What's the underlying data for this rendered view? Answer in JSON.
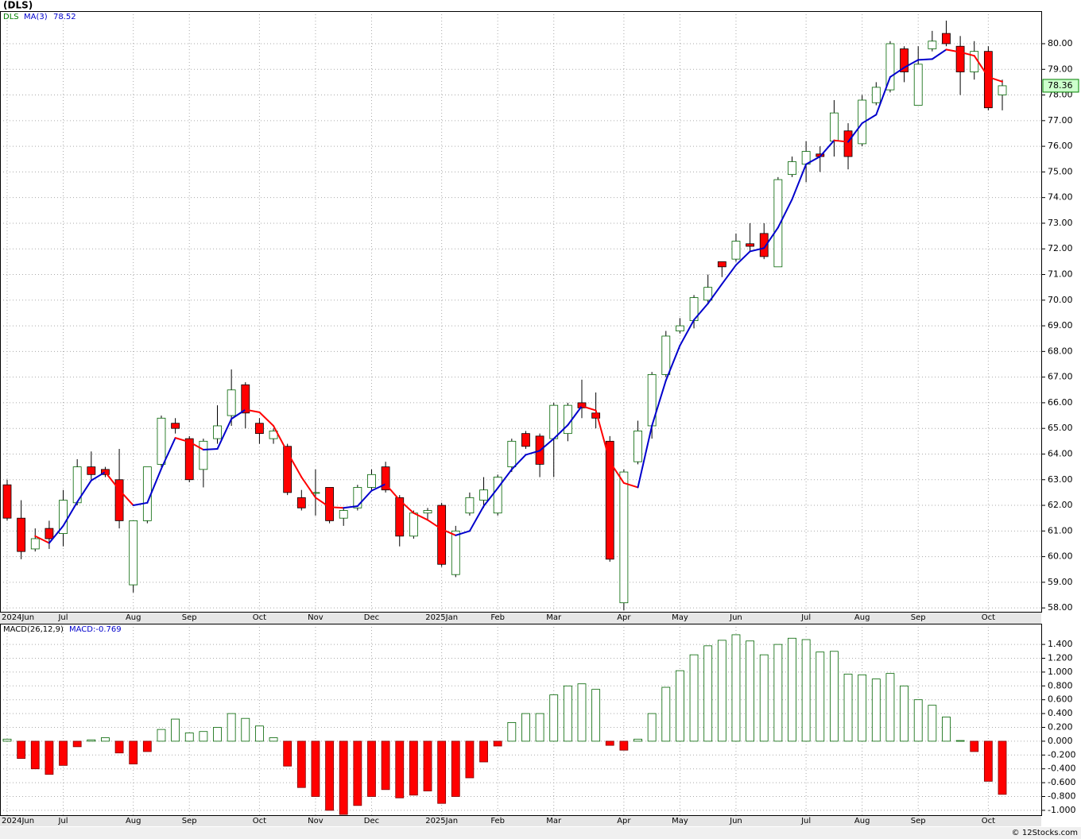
{
  "chart_data": [
    {
      "type": "candlestick",
      "title": "(DLS)",
      "categories": [
        "2024Jun",
        null,
        null,
        null,
        "Jul",
        null,
        null,
        null,
        null,
        "Aug",
        null,
        null,
        null,
        "Sep",
        null,
        null,
        null,
        null,
        "Oct",
        null,
        null,
        null,
        "Nov",
        null,
        null,
        null,
        "Dec",
        null,
        null,
        null,
        null,
        "2025Jan",
        null,
        null,
        null,
        "Feb",
        null,
        null,
        null,
        "Mar",
        null,
        null,
        null,
        null,
        "Apr",
        null,
        null,
        null,
        "May",
        null,
        null,
        null,
        "Jun",
        null,
        null,
        null,
        null,
        "Jul",
        null,
        null,
        null,
        "Aug",
        null,
        null,
        null,
        "Sep",
        null,
        null,
        null,
        null,
        "Oct",
        null
      ],
      "series": [
        {
          "name": "DLS",
          "color": "#008000",
          "up_color": "#ffffff",
          "down_color": "#ff0000",
          "open": [
            62.8,
            61.5,
            60.3,
            61.1,
            60.9,
            62.1,
            63.5,
            63.4,
            63.0,
            58.9,
            61.4,
            63.6,
            65.2,
            64.6,
            63.4,
            64.6,
            65.5,
            66.7,
            65.2,
            64.6,
            64.3,
            62.3,
            62.5,
            62.7,
            61.5,
            61.9,
            62.7,
            63.5,
            62.3,
            60.8,
            61.7,
            62.0,
            59.3,
            61.7,
            62.2,
            61.7,
            63.5,
            64.8,
            64.7,
            64.6,
            64.8,
            66.0,
            65.6,
            64.5,
            58.2,
            63.7,
            65.1,
            67.1,
            68.8,
            69.2,
            70.0,
            71.5,
            71.6,
            72.2,
            72.6,
            71.3,
            74.9,
            75.3,
            75.7,
            76.2,
            76.6,
            76.1,
            77.7,
            78.2,
            79.8,
            77.6,
            79.8,
            80.4,
            79.9,
            78.9,
            79.7,
            78.0
          ],
          "high": [
            63.0,
            62.2,
            61.1,
            61.4,
            62.6,
            63.8,
            64.1,
            63.5,
            64.2,
            61.4,
            63.5,
            65.5,
            65.4,
            64.7,
            64.6,
            65.9,
            67.3,
            66.8,
            65.4,
            65.0,
            64.4,
            62.6,
            63.4,
            62.7,
            61.9,
            62.8,
            63.4,
            63.7,
            62.4,
            61.8,
            61.9,
            62.1,
            61.2,
            62.5,
            63.1,
            63.2,
            64.6,
            64.9,
            64.8,
            66.0,
            66.0,
            66.9,
            66.4,
            64.7,
            63.4,
            65.3,
            67.2,
            68.8,
            69.3,
            70.2,
            71.0,
            71.5,
            72.6,
            73.0,
            73.0,
            74.8,
            75.6,
            76.2,
            76.0,
            77.8,
            76.9,
            78.0,
            78.5,
            80.1,
            79.9,
            79.9,
            80.5,
            80.9,
            80.3,
            80.1,
            79.9,
            78.6
          ],
          "low": [
            61.4,
            59.9,
            60.2,
            60.3,
            60.4,
            62.0,
            63.0,
            63.1,
            61.1,
            58.6,
            61.3,
            63.5,
            64.8,
            62.9,
            62.7,
            64.4,
            65.1,
            65.0,
            64.4,
            64.4,
            62.4,
            61.8,
            61.6,
            61.3,
            61.2,
            61.8,
            62.6,
            62.5,
            60.4,
            60.7,
            61.4,
            59.6,
            59.2,
            61.6,
            61.9,
            61.6,
            63.3,
            64.2,
            63.1,
            63.1,
            64.5,
            65.4,
            65.0,
            59.8,
            57.9,
            63.6,
            64.6,
            67.0,
            68.7,
            68.9,
            69.9,
            70.9,
            71.5,
            71.9,
            71.6,
            71.3,
            74.8,
            74.6,
            75.0,
            75.6,
            75.1,
            76.0,
            77.6,
            78.1,
            78.5,
            77.6,
            79.7,
            79.9,
            78.0,
            78.6,
            77.4,
            77.4
          ],
          "close": [
            61.5,
            60.2,
            60.7,
            60.7,
            62.2,
            63.5,
            63.2,
            63.2,
            61.4,
            61.4,
            63.5,
            65.4,
            65.0,
            63.0,
            64.5,
            65.1,
            66.5,
            65.6,
            64.8,
            64.9,
            62.5,
            61.9,
            62.5,
            61.4,
            61.8,
            62.7,
            63.2,
            62.6,
            60.8,
            61.7,
            61.8,
            59.7,
            61.0,
            62.3,
            62.6,
            63.1,
            64.5,
            64.3,
            63.6,
            65.9,
            65.9,
            65.8,
            65.4,
            59.9,
            63.3,
            64.9,
            67.1,
            68.6,
            69.0,
            70.1,
            70.5,
            71.3,
            72.3,
            72.1,
            71.7,
            74.7,
            75.4,
            75.8,
            75.6,
            77.3,
            75.6,
            77.8,
            78.3,
            80.0,
            78.9,
            79.2,
            80.1,
            80.0,
            78.9,
            79.7,
            77.5,
            78.36
          ]
        },
        {
          "name": "MA(3)",
          "type": "line",
          "color": "#0000cc",
          "down_color": "#ff0000",
          "values": [
            null,
            null,
            60.8,
            60.53,
            61.2,
            62.13,
            62.97,
            63.3,
            62.6,
            62.0,
            62.1,
            63.43,
            64.63,
            64.47,
            64.17,
            64.2,
            65.37,
            65.73,
            65.63,
            65.1,
            64.07,
            63.1,
            62.3,
            61.93,
            61.9,
            61.97,
            62.57,
            62.83,
            62.2,
            61.7,
            61.43,
            61.07,
            60.83,
            61.0,
            61.97,
            62.67,
            63.4,
            63.97,
            64.13,
            64.6,
            65.13,
            65.87,
            65.7,
            63.7,
            62.87,
            62.7,
            65.1,
            66.87,
            68.23,
            69.23,
            69.87,
            70.63,
            71.37,
            71.9,
            72.03,
            72.83,
            73.93,
            75.3,
            75.6,
            76.23,
            76.17,
            76.9,
            77.23,
            78.7,
            79.07,
            79.37,
            79.4,
            79.77,
            79.67,
            79.53,
            78.7,
            78.52
          ]
        }
      ],
      "ylim": [
        57.85,
        81.27
      ],
      "yticks": [
        {
          "value": 58,
          "label": "58.00"
        },
        {
          "value": 59,
          "label": "59.00"
        },
        {
          "value": 60,
          "label": "60.00"
        },
        {
          "value": 61,
          "label": "61.00"
        },
        {
          "value": 62,
          "label": "62.00"
        },
        {
          "value": 63,
          "label": "63.00"
        },
        {
          "value": 64,
          "label": "64.00"
        },
        {
          "value": 65,
          "label": "65.00"
        },
        {
          "value": 66,
          "label": "66.00"
        },
        {
          "value": 67,
          "label": "67.00"
        },
        {
          "value": 68,
          "label": "68.00"
        },
        {
          "value": 69,
          "label": "69.00"
        },
        {
          "value": 70,
          "label": "70.00"
        },
        {
          "value": 71,
          "label": "71.00"
        },
        {
          "value": 72,
          "label": "72.00"
        },
        {
          "value": 73,
          "label": "73.00"
        },
        {
          "value": 74,
          "label": "74.00"
        },
        {
          "value": 75,
          "label": "75.00"
        },
        {
          "value": 76,
          "label": "76.00"
        },
        {
          "value": 77,
          "label": "77.00"
        },
        {
          "value": 78,
          "label": "78.00"
        },
        {
          "value": 79,
          "label": "79.00"
        },
        {
          "value": 80,
          "label": "80.00"
        }
      ],
      "grid": true
    },
    {
      "type": "bar",
      "title": "MACD(26,12,9)",
      "subtitle": "MACD:-0.769",
      "categories": [
        "2024Jun",
        null,
        null,
        null,
        "Jul",
        null,
        null,
        null,
        null,
        "Aug",
        null,
        null,
        null,
        "Sep",
        null,
        null,
        null,
        null,
        "Oct",
        null,
        null,
        null,
        "Nov",
        null,
        null,
        null,
        "Dec",
        null,
        null,
        null,
        null,
        "2025Jan",
        null,
        null,
        null,
        "Feb",
        null,
        null,
        null,
        "Mar",
        null,
        null,
        null,
        null,
        "Apr",
        null,
        null,
        null,
        "May",
        null,
        null,
        null,
        "Jun",
        null,
        null,
        null,
        null,
        "Jul",
        null,
        null,
        null,
        "Aug",
        null,
        null,
        null,
        "Sep",
        null,
        null,
        null,
        null,
        "Oct",
        null
      ],
      "series": [
        {
          "up_color": "#ffffff",
          "up_stroke": "#006400",
          "down_color": "#ff0000",
          "values": [
            0.03,
            -0.25,
            -0.4,
            -0.48,
            -0.35,
            -0.08,
            0.02,
            0.05,
            -0.17,
            -0.33,
            -0.15,
            0.17,
            0.32,
            0.12,
            0.14,
            0.2,
            0.4,
            0.33,
            0.22,
            0.05,
            -0.36,
            -0.67,
            -0.8,
            -1.0,
            -1.06,
            -0.93,
            -0.8,
            -0.7,
            -0.82,
            -0.78,
            -0.72,
            -0.9,
            -0.8,
            -0.53,
            -0.3,
            -0.07,
            0.27,
            0.4,
            0.4,
            0.67,
            0.8,
            0.83,
            0.75,
            -0.06,
            -0.13,
            0.03,
            0.4,
            0.78,
            1.02,
            1.25,
            1.38,
            1.46,
            1.54,
            1.45,
            1.25,
            1.4,
            1.49,
            1.47,
            1.29,
            1.3,
            0.97,
            0.96,
            0.9,
            0.98,
            0.8,
            0.6,
            0.52,
            0.35,
            0.01,
            -0.15,
            -0.58,
            -0.769
          ]
        }
      ],
      "ylim": [
        -1.07,
        1.7
      ],
      "yticks": [
        {
          "value": -1,
          "label": "-1.000"
        },
        {
          "value": -0.8,
          "label": "-0.800"
        },
        {
          "value": -0.6,
          "label": "-0.600"
        },
        {
          "value": -0.4,
          "label": "-0.400"
        },
        {
          "value": -0.2,
          "label": "-0.200"
        },
        {
          "value": 0,
          "label": "0.000"
        },
        {
          "value": 0.2,
          "label": "0.200"
        },
        {
          "value": 0.4,
          "label": "0.400"
        },
        {
          "value": 0.6,
          "label": "0.600"
        },
        {
          "value": 0.8,
          "label": "0.800"
        },
        {
          "value": 1,
          "label": "1.000"
        },
        {
          "value": 1.2,
          "label": "1.200"
        },
        {
          "value": 1.4,
          "label": "1.400"
        }
      ],
      "grid": true
    }
  ],
  "footer": "© 12Stocks.com"
}
